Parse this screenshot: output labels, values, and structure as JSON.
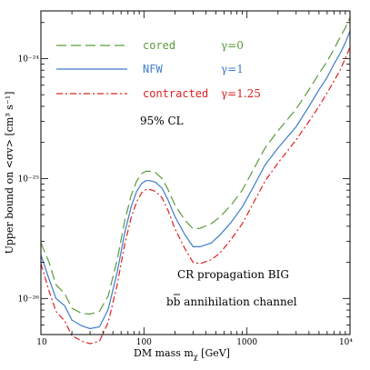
{
  "chart_data": {
    "type": "line",
    "xscale": "log",
    "yscale": "log",
    "xlim": [
      10,
      10000
    ],
    "ylim": [
      5e-27,
      2.5e-24
    ],
    "xlabel": "DM mass m",
    "xlabel_sub": "χ",
    "xlabel_unit": " [GeV]",
    "ylabel": "Upper bound on <σv> [cm³ s⁻¹]",
    "x_tick_labels": [
      {
        "value": 10,
        "label": "10"
      },
      {
        "value": 100,
        "label": "100"
      },
      {
        "value": 1000,
        "label": "1000"
      },
      {
        "value": 10000,
        "label": "10⁴"
      }
    ],
    "y_tick_labels": [
      {
        "value": 1e-26,
        "label": "10⁻²⁶"
      },
      {
        "value": 1e-25,
        "label": "10⁻²⁵"
      },
      {
        "value": 1e-24,
        "label": "10⁻²⁴"
      }
    ],
    "series": [
      {
        "name": "cored",
        "gamma": "γ=0",
        "color": "#5a9a3c",
        "style": "dashed",
        "x": [
          10,
          12,
          14,
          17,
          20,
          25,
          30,
          37,
          45,
          55,
          65,
          75,
          85,
          95,
          105,
          115,
          130,
          150,
          170,
          200,
          250,
          300,
          350,
          450,
          550,
          700,
          900,
          1100,
          1500,
          2000,
          3000,
          4000,
          5000,
          6000,
          7000,
          8000,
          9000,
          10000
        ],
        "y": [
          2.9e-26,
          2e-26,
          1.3e-26,
          1.1e-26,
          8.3e-27,
          7.5e-27,
          7.4e-27,
          7.8e-27,
          1.05e-26,
          2.1e-26,
          4.4e-26,
          7.2e-26,
          9.5e-26,
          1.1e-25,
          1.15e-25,
          1.15e-25,
          1.12e-25,
          1e-25,
          8.2e-26,
          6e-26,
          4.5e-26,
          3.8e-26,
          3.85e-26,
          4.2e-26,
          4.8e-26,
          6e-26,
          8e-26,
          1.1e-25,
          1.8e-25,
          2.5e-25,
          3.8e-25,
          5.5e-25,
          7.5e-25,
          9.5e-25,
          1.2e-24,
          1.5e-24,
          1.8e-24,
          2.2e-24
        ]
      },
      {
        "name": "NFW",
        "gamma": "γ=1",
        "color": "#3d7cc9",
        "style": "solid",
        "x": [
          10,
          12,
          14,
          17,
          20,
          25,
          30,
          37,
          45,
          55,
          65,
          75,
          85,
          95,
          105,
          115,
          130,
          150,
          170,
          200,
          250,
          300,
          350,
          450,
          550,
          700,
          900,
          1100,
          1500,
          2000,
          3000,
          4000,
          5000,
          6000,
          7000,
          8000,
          9000,
          10000
        ],
        "y": [
          2.3e-26,
          1.45e-26,
          1e-26,
          8.7e-27,
          6.6e-27,
          5.9e-27,
          5.6e-27,
          5.8e-27,
          8.1e-27,
          1.65e-26,
          3.5e-26,
          5.8e-26,
          7.8e-26,
          9.1e-26,
          9.6e-26,
          9.6e-26,
          9.3e-26,
          8.3e-26,
          6.7e-26,
          4.8e-26,
          3.4e-26,
          2.7e-26,
          2.7e-26,
          2.9e-26,
          3.4e-26,
          4.3e-26,
          5.8e-26,
          7.9e-26,
          1.3e-25,
          1.8e-25,
          2.7e-25,
          4e-25,
          5.5e-25,
          7e-25,
          9e-25,
          1.1e-24,
          1.35e-24,
          1.7e-24
        ]
      },
      {
        "name": "contracted",
        "gamma": "γ=1.25",
        "color": "#e0201e",
        "style": "dashdot",
        "x": [
          10,
          12,
          14,
          17,
          20,
          25,
          30,
          37,
          45,
          55,
          65,
          75,
          85,
          95,
          105,
          115,
          130,
          150,
          170,
          200,
          250,
          300,
          350,
          450,
          550,
          700,
          900,
          1100,
          1500,
          2000,
          3000,
          4000,
          5000,
          6000,
          7000,
          8000,
          9000,
          10000
        ],
        "y": [
          1.95e-26,
          1.15e-26,
          7.8e-27,
          6.5e-27,
          4.9e-27,
          4.4e-27,
          4.2e-27,
          4.4e-27,
          6.3e-27,
          1.3e-26,
          2.8e-26,
          4.7e-26,
          6.4e-26,
          7.6e-26,
          8.1e-26,
          8.1e-26,
          7.8e-26,
          6.9e-26,
          5.5e-26,
          3.8e-26,
          2.6e-26,
          2e-26,
          1.95e-26,
          2.1e-26,
          2.4e-26,
          3.1e-26,
          4.2e-26,
          5.8e-26,
          9.5e-26,
          1.35e-25,
          2.1e-25,
          3e-25,
          4e-25,
          5.2e-25,
          6.5e-25,
          8e-25,
          1e-24,
          1.25e-24
        ]
      }
    ],
    "legend_placement": "top-left",
    "annotations": {
      "cl": "95% CL",
      "propagation": "CR propagation BIG",
      "channel_suffix": " annihilation channel",
      "channel_quark": "b"
    },
    "grid": false
  }
}
